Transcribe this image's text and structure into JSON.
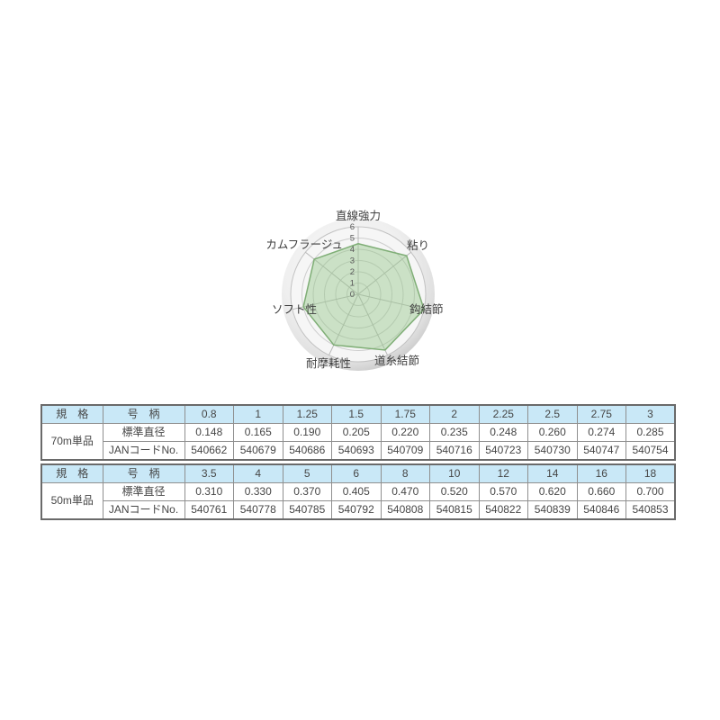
{
  "chart_data": {
    "type": "radar",
    "title": "",
    "categories": [
      "直線強力",
      "粘り",
      "鈎結節",
      "道糸結節",
      "耐摩耗性",
      "ソフト性",
      "カムフラージュ"
    ],
    "values": [
      4.5,
      5.5,
      6,
      5.5,
      5,
      5,
      5
    ],
    "tick_labels": [
      "0",
      "1",
      "2",
      "3",
      "4",
      "5",
      "6"
    ],
    "ylim": [
      0,
      6
    ],
    "legend": "none",
    "grid": "circular",
    "colors": {
      "series_fill": "rgba(150,200,140,0.45)",
      "series_stroke": "#7fae76",
      "plot_disc_center": "#fafafa",
      "plot_disc_edge": "#c8c8c8",
      "ring_line": "#cdcdcd",
      "spoke_line": "#b8b8b8",
      "axis_label": "#3f3f3f",
      "tick_label": "#595959"
    }
  },
  "tables": [
    {
      "spec_header": "規　格",
      "size_header": "号　柄",
      "spec_label": "70m単品",
      "sizes": [
        "0.8",
        "1",
        "1.25",
        "1.5",
        "1.75",
        "2",
        "2.25",
        "2.5",
        "2.75",
        "3"
      ],
      "rows": [
        {
          "label": "標準直径",
          "values": [
            "0.148",
            "0.165",
            "0.190",
            "0.205",
            "0.220",
            "0.235",
            "0.248",
            "0.260",
            "0.274",
            "0.285"
          ]
        },
        {
          "label": "JANコードNo.",
          "values": [
            "540662",
            "540679",
            "540686",
            "540693",
            "540709",
            "540716",
            "540723",
            "540730",
            "540747",
            "540754"
          ]
        }
      ]
    },
    {
      "spec_header": "規　格",
      "size_header": "号　柄",
      "spec_label": "50m単品",
      "sizes": [
        "3.5",
        "4",
        "5",
        "6",
        "8",
        "10",
        "12",
        "14",
        "16",
        "18"
      ],
      "rows": [
        {
          "label": "標準直径",
          "values": [
            "0.310",
            "0.330",
            "0.370",
            "0.405",
            "0.470",
            "0.520",
            "0.570",
            "0.620",
            "0.660",
            "0.700"
          ]
        },
        {
          "label": "JANコードNo.",
          "values": [
            "540761",
            "540778",
            "540785",
            "540792",
            "540808",
            "540815",
            "540822",
            "540839",
            "540846",
            "540853"
          ]
        }
      ]
    }
  ],
  "table_style": {
    "header_bg": "#c9e8f7",
    "border_inner": "#8f8f8f",
    "border_outer": "#6a6a6a",
    "text_color": "#464646"
  }
}
